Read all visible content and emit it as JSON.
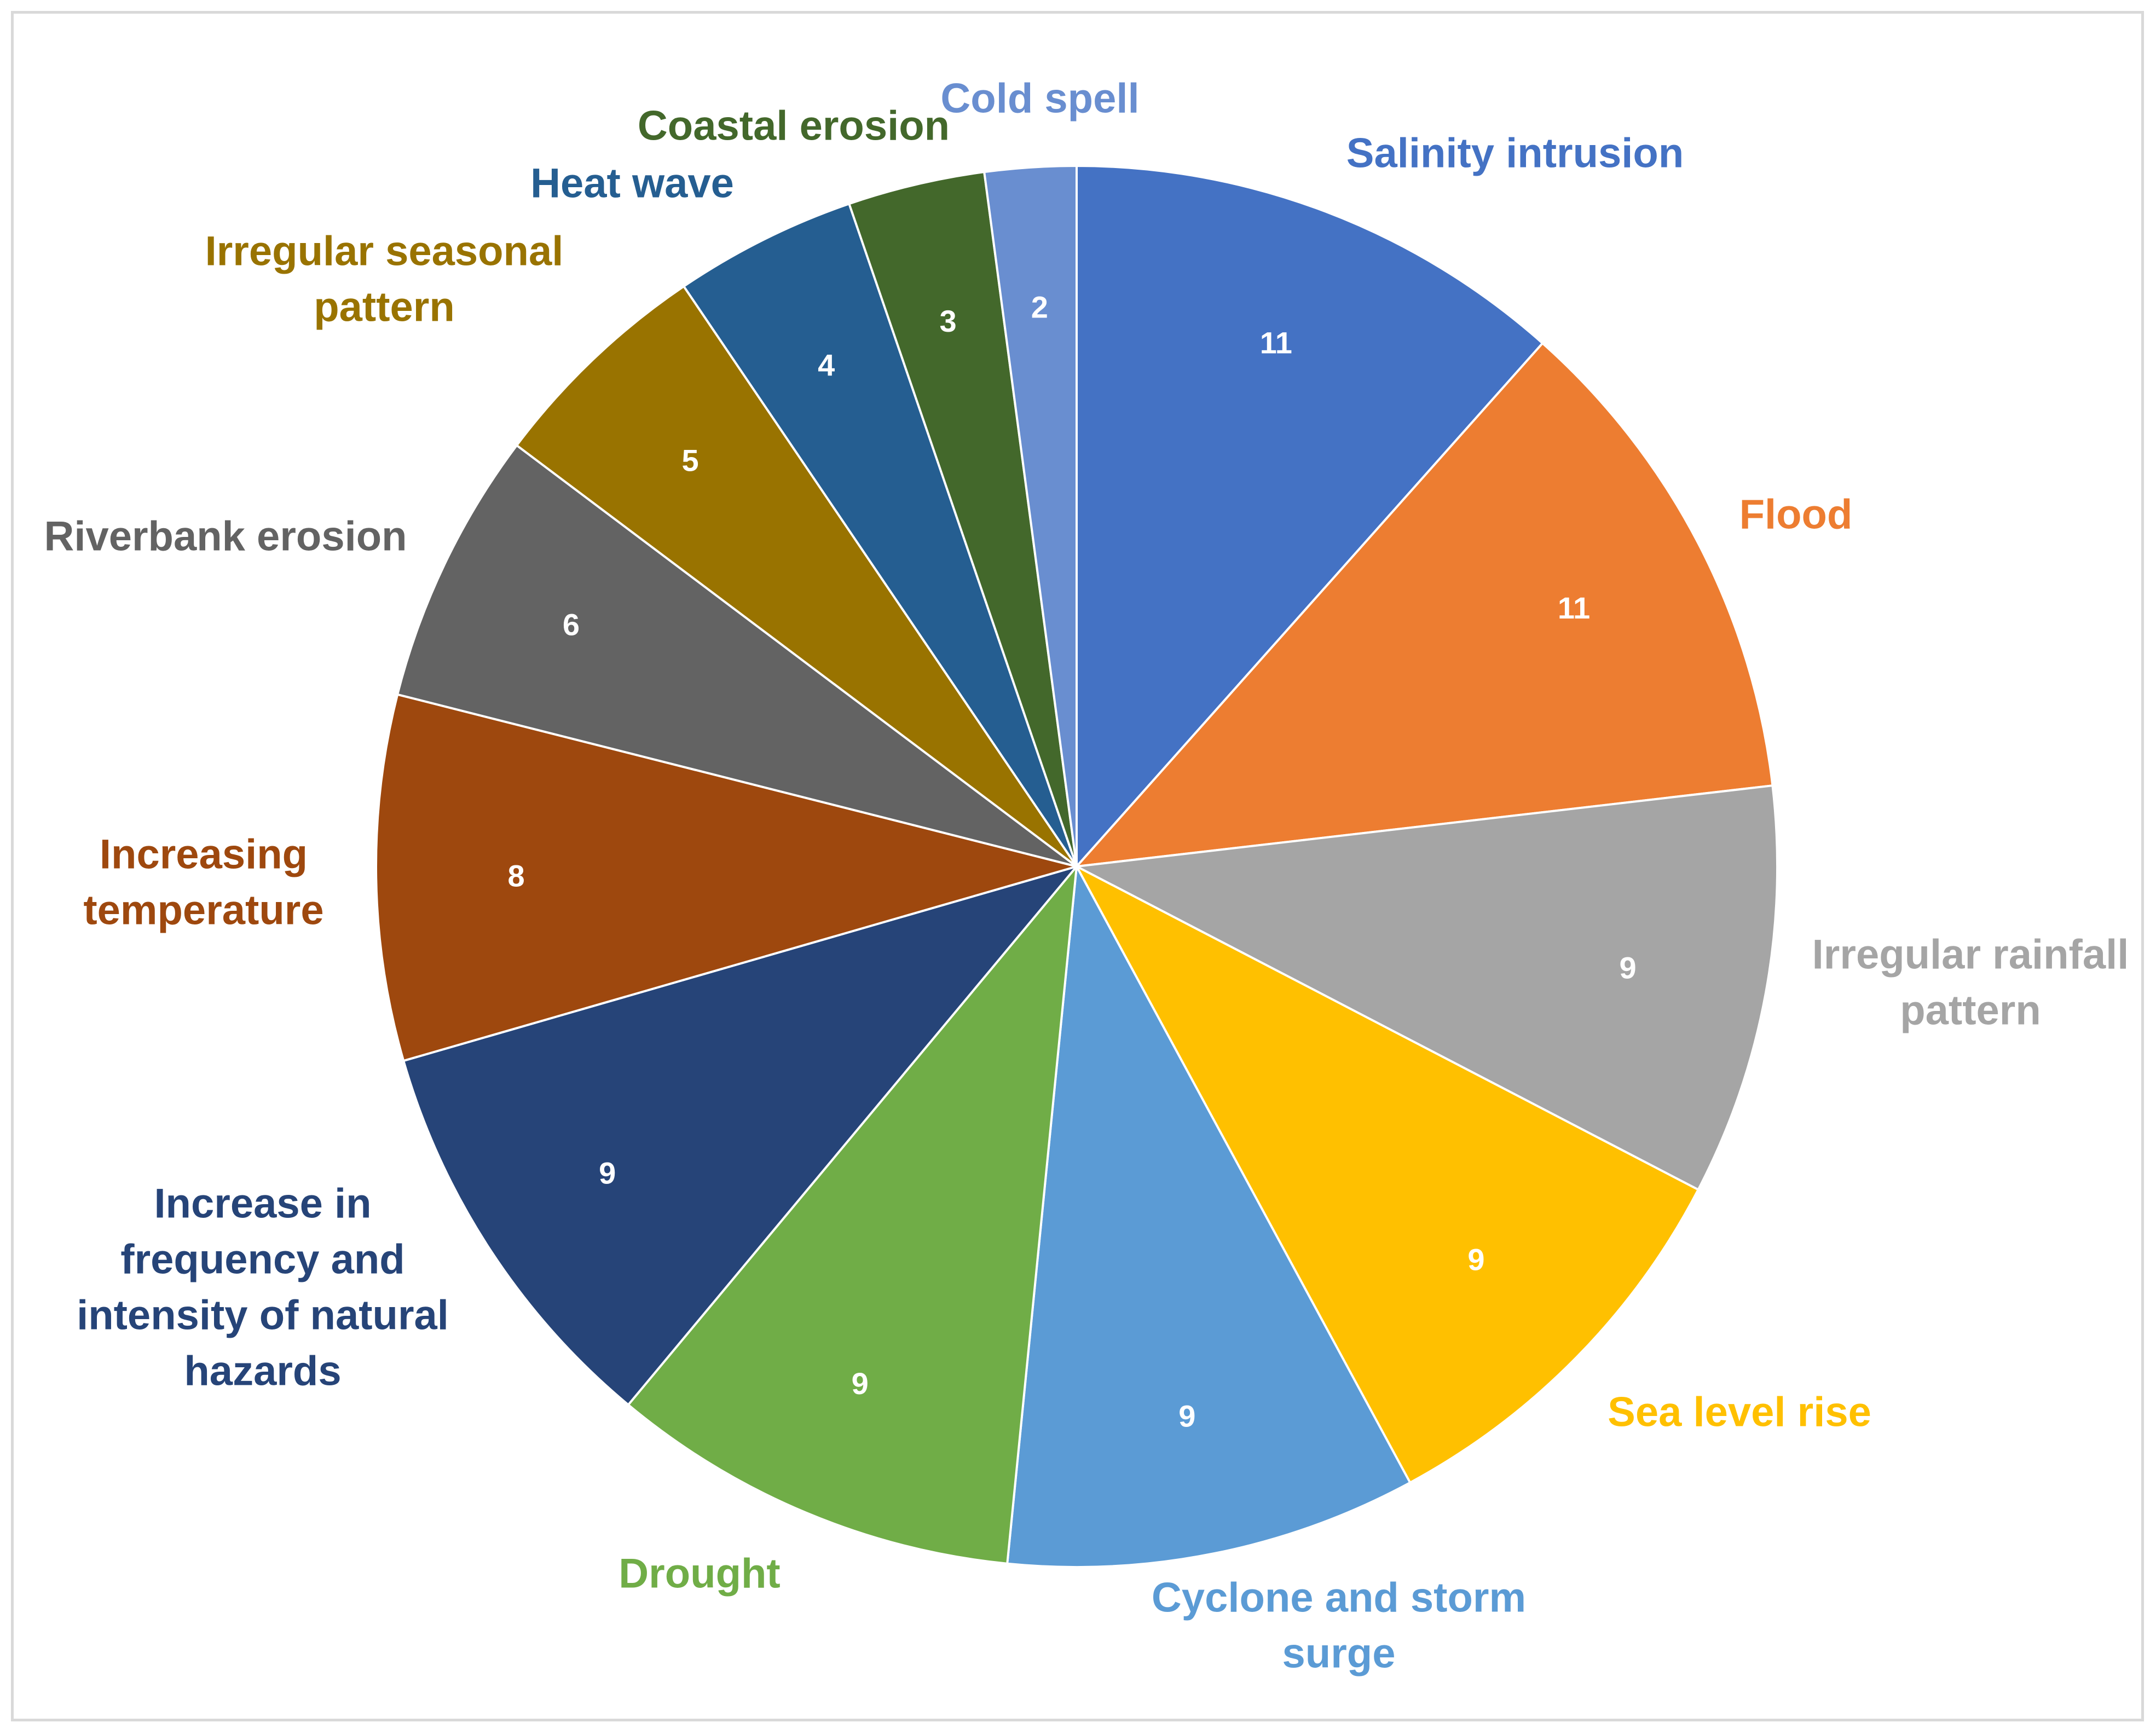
{
  "chart_data": {
    "type": "pie",
    "title": "",
    "start_angle_deg": 0,
    "direction": "clockwise",
    "slices": [
      {
        "label": [
          "Salinity intrusion"
        ],
        "value": 11,
        "color": "#4472C4"
      },
      {
        "label": [
          "Flood"
        ],
        "value": 11,
        "color": "#ED7D31"
      },
      {
        "label": [
          "Irregular rainfall",
          "pattern"
        ],
        "value": 9,
        "color": "#A5A5A5"
      },
      {
        "label": [
          "Sea level rise"
        ],
        "value": 9,
        "color": "#FFC000"
      },
      {
        "label": [
          "Cyclone and storm",
          "surge"
        ],
        "value": 9,
        "color": "#5B9BD5"
      },
      {
        "label": [
          "Drought"
        ],
        "value": 9,
        "color": "#70AD47"
      },
      {
        "label": [
          "Increase in",
          "frequency and",
          "intensity of natural",
          "hazards"
        ],
        "value": 9,
        "color": "#264478"
      },
      {
        "label": [
          "Increasing",
          "temperature"
        ],
        "value": 8,
        "color": "#9E480E"
      },
      {
        "label": [
          "Riverbank erosion"
        ],
        "value": 6,
        "color": "#636363"
      },
      {
        "label": [
          "Irregular seasonal",
          "pattern"
        ],
        "value": 5,
        "color": "#997300"
      },
      {
        "label": [
          "Heat wave"
        ],
        "value": 4,
        "color": "#255E91"
      },
      {
        "label": [
          "Coastal erosion"
        ],
        "value": 3,
        "color": "#43682B"
      },
      {
        "label": [
          "Cold spell"
        ],
        "value": 2,
        "color": "#698ED0"
      }
    ]
  }
}
